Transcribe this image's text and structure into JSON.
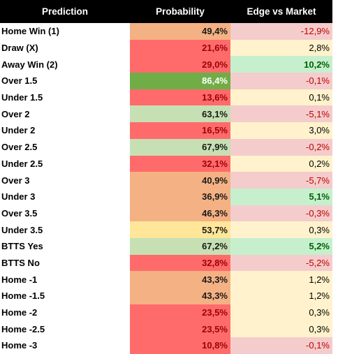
{
  "table": {
    "header": [
      "Prediction",
      "Probability",
      "Edge vs Market"
    ],
    "rows": [
      {
        "prediction": "Home Win (1)",
        "probability": "49,4%",
        "edge": "-12,9%",
        "probability_style": "orange",
        "edge_style": "pink"
      },
      {
        "prediction": "Draw (X)",
        "probability": "21,6%",
        "edge": "2,8%",
        "probability_style": "red",
        "edge_style": "cream"
      },
      {
        "prediction": "Away Win (2)",
        "probability": "29,0%",
        "edge": "10,2%",
        "probability_style": "red",
        "edge_style": "green"
      },
      {
        "prediction": "Over 1.5",
        "probability": "86,4%",
        "edge": "-0,1%",
        "probability_style": "darkgreen",
        "edge_style": "pink"
      },
      {
        "prediction": "Under 1.5",
        "probability": "13,6%",
        "edge": "0,1%",
        "probability_style": "red",
        "edge_style": "cream"
      },
      {
        "prediction": "Over 2",
        "probability": "63,1%",
        "edge": "-5,1%",
        "probability_style": "lightgreen",
        "edge_style": "pink"
      },
      {
        "prediction": "Under 2",
        "probability": "16,5%",
        "edge": "3,0%",
        "probability_style": "red",
        "edge_style": "cream"
      },
      {
        "prediction": "Over 2.5",
        "probability": "67,9%",
        "edge": "-0,2%",
        "probability_style": "lightgreen",
        "edge_style": "pink"
      },
      {
        "prediction": "Under 2.5",
        "probability": "32,1%",
        "edge": "0,2%",
        "probability_style": "red",
        "edge_style": "cream"
      },
      {
        "prediction": "Over 3",
        "probability": "40,9%",
        "edge": "-5,7%",
        "probability_style": "orange",
        "edge_style": "pink"
      },
      {
        "prediction": "Under 3",
        "probability": "36,9%",
        "edge": "5,1%",
        "probability_style": "orange",
        "edge_style": "green"
      },
      {
        "prediction": "Over 3.5",
        "probability": "46,3%",
        "edge": "-0,3%",
        "probability_style": "orange",
        "edge_style": "pink"
      },
      {
        "prediction": "Under 3.5",
        "probability": "53,7%",
        "edge": "0,3%",
        "probability_style": "yellow",
        "edge_style": "cream"
      },
      {
        "prediction": "BTTS Yes",
        "probability": "67,2%",
        "edge": "5,2%",
        "probability_style": "lightgreen",
        "edge_style": "green"
      },
      {
        "prediction": "BTTS No",
        "probability": "32,8%",
        "edge": "-5,2%",
        "probability_style": "red",
        "edge_style": "pink"
      },
      {
        "prediction": "Home -1",
        "probability": "43,3%",
        "edge": "1,2%",
        "probability_style": "orange",
        "edge_style": "cream"
      },
      {
        "prediction": "Home -1.5",
        "probability": "43,3%",
        "edge": "1,2%",
        "probability_style": "orange",
        "edge_style": "cream"
      },
      {
        "prediction": "Home -2",
        "probability": "23,5%",
        "edge": "0,3%",
        "probability_style": "red",
        "edge_style": "cream"
      },
      {
        "prediction": "Home -2.5",
        "probability": "23,5%",
        "edge": "0,3%",
        "probability_style": "red",
        "edge_style": "cream"
      },
      {
        "prediction": "Home -3",
        "probability": "10,8%",
        "edge": "-0,1%",
        "probability_style": "red",
        "edge_style": "pink"
      }
    ]
  }
}
